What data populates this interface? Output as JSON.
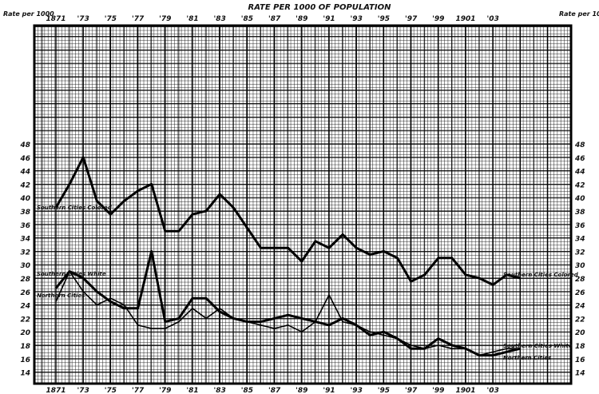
{
  "chart_data": {
    "type": "line",
    "title": "RATE PER 1000 OF POPULATION",
    "ylabel_left": "Rate per 1000",
    "ylabel_right": "Rate per 1000",
    "x": [
      1871,
      1872,
      1873,
      1874,
      1875,
      1876,
      1877,
      1878,
      1879,
      1880,
      1881,
      1882,
      1883,
      1884,
      1885,
      1886,
      1887,
      1888,
      1889,
      1890,
      1891,
      1892,
      1893,
      1894,
      1895,
      1896,
      1897,
      1898,
      1899,
      1900,
      1901,
      1902,
      1903,
      1904,
      1905
    ],
    "x_tick_values": [
      1871,
      1873,
      1875,
      1877,
      1879,
      1881,
      1883,
      1885,
      1887,
      1889,
      1891,
      1893,
      1895,
      1897,
      1899,
      1901,
      1903
    ],
    "x_tick_labels": [
      "1871",
      "'73",
      "'75",
      "'77",
      "'79",
      "'81",
      "'83",
      "'85",
      "'87",
      "'89",
      "'91",
      "'93",
      "'95",
      "'97",
      "'99",
      "1901",
      "'03"
    ],
    "y_ticks": [
      48,
      46,
      44,
      42,
      40,
      38,
      36,
      34,
      32,
      30,
      28,
      26,
      24,
      22,
      20,
      18,
      16,
      14
    ],
    "ylim": [
      14,
      48
    ],
    "grid": true,
    "series": [
      {
        "name": "Southern Cities Colored",
        "style": "heavy",
        "values": [
          38.5,
          42,
          46,
          39.5,
          37.5,
          39.5,
          41,
          42,
          35,
          35,
          37.5,
          38,
          40.5,
          38.5,
          35.5,
          32.5,
          32.5,
          32.5,
          30.5,
          33.5,
          32.5,
          34.5,
          32.5,
          31.5,
          32,
          31,
          27.5,
          28.5,
          31,
          31,
          28.5,
          28,
          27,
          28.5,
          28
        ]
      },
      {
        "name": "Southern Cities White",
        "style": "heavy",
        "values": [
          26.5,
          29,
          28,
          26,
          24.5,
          23.5,
          23.5,
          32,
          21.5,
          22,
          25,
          25,
          23,
          22,
          21.5,
          21.5,
          22,
          22.5,
          22,
          21.5,
          21,
          22,
          21,
          19.5,
          20,
          19,
          17.5,
          17.5,
          19,
          18,
          17.5,
          16.5,
          16.5,
          17,
          17.5
        ]
      },
      {
        "name": "Northern Cities",
        "style": "thin",
        "values": [
          24.5,
          29,
          26,
          24,
          25,
          24,
          21,
          20.5,
          20.5,
          21.5,
          23.5,
          22,
          23.5,
          22,
          21.5,
          21,
          20.5,
          21,
          20,
          21.5,
          25.5,
          21.5,
          21,
          20,
          19.5,
          19,
          18,
          17.5,
          18,
          17.5,
          17.5,
          16.5,
          17,
          17.5,
          17.5
        ]
      }
    ]
  }
}
